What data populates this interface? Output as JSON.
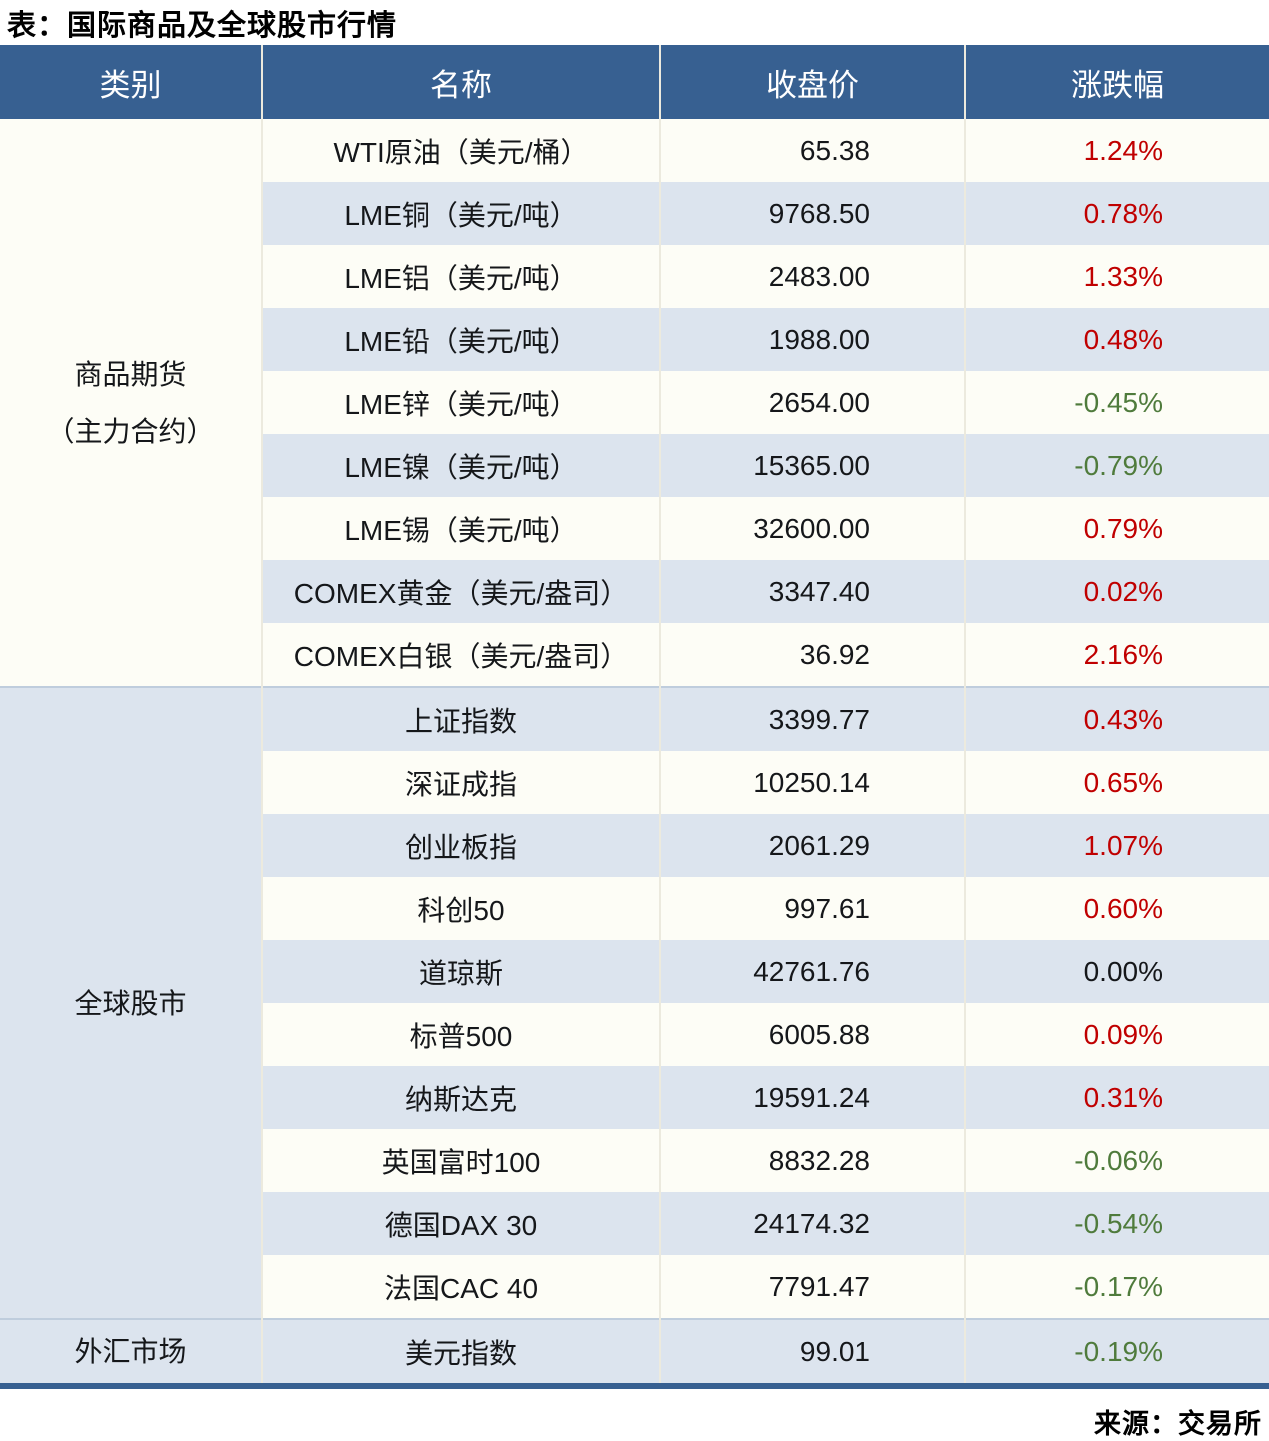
{
  "chart_data": {
    "type": "table",
    "title": "表：国际商品及全球股市行情",
    "columns": [
      "类别",
      "名称",
      "收盘价",
      "涨跌幅"
    ],
    "sections": [
      {
        "category": "商品期货\n（主力合约）",
        "rows": [
          {
            "name": "WTI原油（美元/桶）",
            "close": "65.38",
            "change": "1.24%",
            "direction": "up"
          },
          {
            "name": "LME铜（美元/吨）",
            "close": "9768.50",
            "change": "0.78%",
            "direction": "up"
          },
          {
            "name": "LME铝（美元/吨）",
            "close": "2483.00",
            "change": "1.33%",
            "direction": "up"
          },
          {
            "name": "LME铅（美元/吨）",
            "close": "1988.00",
            "change": "0.48%",
            "direction": "up"
          },
          {
            "name": "LME锌（美元/吨）",
            "close": "2654.00",
            "change": "-0.45%",
            "direction": "down"
          },
          {
            "name": "LME镍（美元/吨）",
            "close": "15365.00",
            "change": "-0.79%",
            "direction": "down"
          },
          {
            "name": "LME锡（美元/吨）",
            "close": "32600.00",
            "change": "0.79%",
            "direction": "up"
          },
          {
            "name": "COMEX黄金（美元/盎司）",
            "close": "3347.40",
            "change": "0.02%",
            "direction": "up"
          },
          {
            "name": "COMEX白银（美元/盎司）",
            "close": "36.92",
            "change": "2.16%",
            "direction": "up"
          }
        ]
      },
      {
        "category": "全球股市",
        "rows": [
          {
            "name": "上证指数",
            "close": "3399.77",
            "change": "0.43%",
            "direction": "up"
          },
          {
            "name": "深证成指",
            "close": "10250.14",
            "change": "0.65%",
            "direction": "up"
          },
          {
            "name": "创业板指",
            "close": "2061.29",
            "change": "1.07%",
            "direction": "up"
          },
          {
            "name": "科创50",
            "close": "997.61",
            "change": "0.60%",
            "direction": "up"
          },
          {
            "name": "道琼斯",
            "close": "42761.76",
            "change": "0.00%",
            "direction": "flat"
          },
          {
            "name": "标普500",
            "close": "6005.88",
            "change": "0.09%",
            "direction": "up"
          },
          {
            "name": "纳斯达克",
            "close": "19591.24",
            "change": "0.31%",
            "direction": "up"
          },
          {
            "name": "英国富时100",
            "close": "8832.28",
            "change": "-0.06%",
            "direction": "down"
          },
          {
            "name": "德国DAX 30",
            "close": "24174.32",
            "change": "-0.54%",
            "direction": "down"
          },
          {
            "name": "法国CAC 40",
            "close": "7791.47",
            "change": "-0.17%",
            "direction": "down"
          }
        ]
      },
      {
        "category": "外汇市场",
        "rows": [
          {
            "name": "美元指数",
            "close": "99.01",
            "change": "-0.19%",
            "direction": "down"
          }
        ]
      }
    ],
    "source": "来源：交易所",
    "layout": {
      "grid": "off",
      "zebra_striping": true
    }
  },
  "colors": {
    "header_bg": "#376091",
    "header_text": "#ffffff",
    "row_alt_blue": "#dce4ee",
    "row_white": "#fdfdf6",
    "positive_red": "#c00000",
    "negative_green": "#4f7b3c",
    "neutral_black": "#15171a",
    "bottom_rule_blue": "#376091"
  }
}
